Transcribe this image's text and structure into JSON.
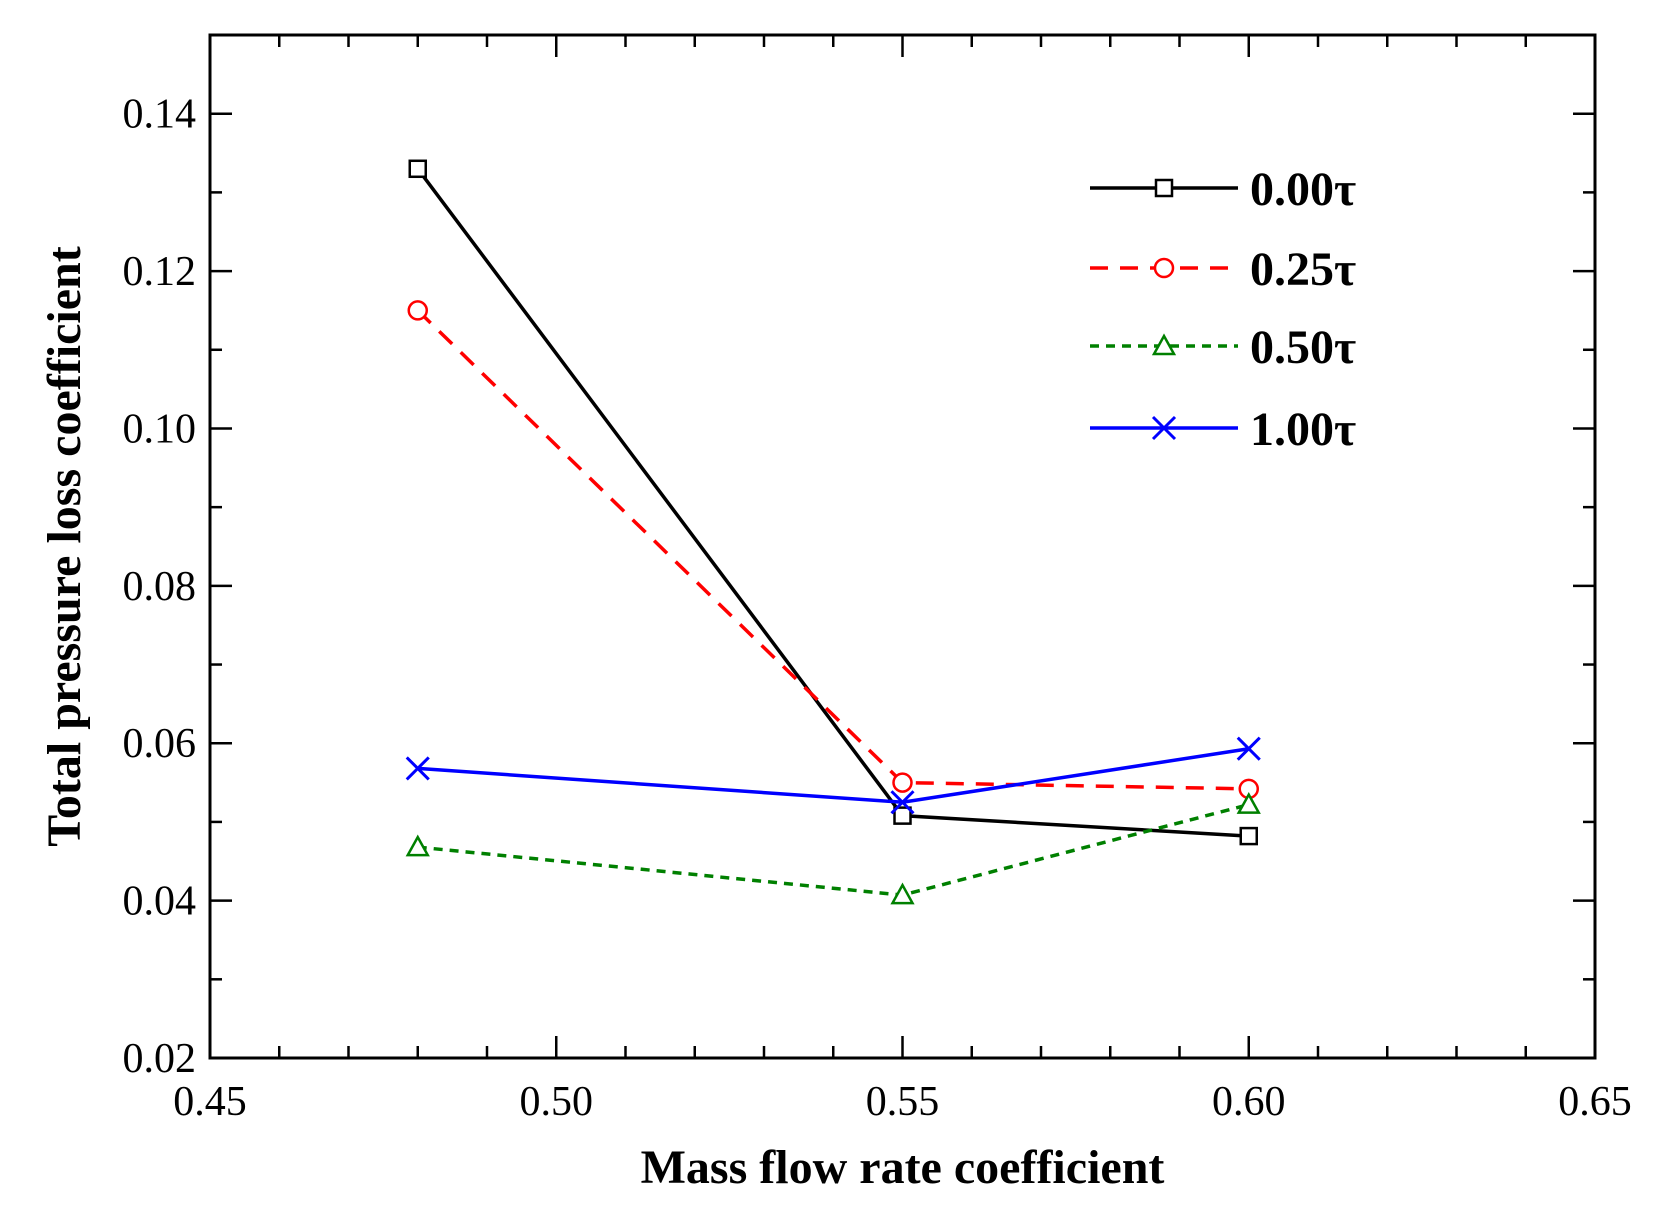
{
  "chart_data": {
    "type": "line",
    "title": "",
    "xlabel": "Mass flow rate coefficient",
    "ylabel": "Total pressure loss coefficient",
    "xlim": [
      0.45,
      0.65
    ],
    "ylim": [
      0.02,
      0.15
    ],
    "x_ticks": [
      0.45,
      0.5,
      0.55,
      0.6,
      0.65
    ],
    "x_tick_labels": [
      "0.45",
      "0.50",
      "0.55",
      "0.60",
      "0.65"
    ],
    "y_ticks": [
      0.02,
      0.04,
      0.06,
      0.08,
      0.1,
      0.12,
      0.14
    ],
    "y_tick_labels": [
      "0.02",
      "0.04",
      "0.06",
      "0.08",
      "0.10",
      "0.12",
      "0.14"
    ],
    "x_minor_step": 0.01,
    "y_minor_step": 0.01,
    "grid": false,
    "legend_position": "top-right",
    "x": [
      0.48,
      0.55,
      0.6
    ],
    "series": [
      {
        "name": "0.00τ",
        "values": [
          0.133,
          0.0508,
          0.0482
        ],
        "color": "#000000",
        "dash": "solid",
        "marker": "square"
      },
      {
        "name": "0.25τ",
        "values": [
          0.115,
          0.055,
          0.0542
        ],
        "color": "#ff0000",
        "dash": "dashed",
        "marker": "circle"
      },
      {
        "name": "0.50τ",
        "values": [
          0.0468,
          0.0407,
          0.0522
        ],
        "color": "#008000",
        "dash": "dotted",
        "marker": "triangle"
      },
      {
        "name": "1.00τ",
        "values": [
          0.0568,
          0.0525,
          0.0593
        ],
        "color": "#0000ff",
        "dash": "solid",
        "marker": "x"
      }
    ]
  }
}
